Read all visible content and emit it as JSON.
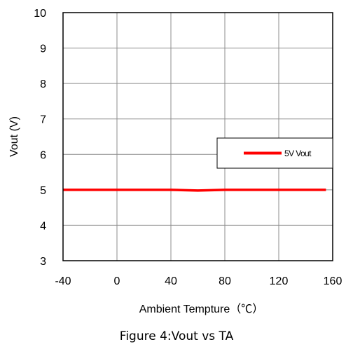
{
  "chart_data": {
    "type": "line",
    "xlabel": "Ambient Tempture（℃）",
    "ylabel": "Vout (V)",
    "caption": "Figure 4:Vout vs TA",
    "xlim": [
      -40,
      160
    ],
    "ylim": [
      3,
      10
    ],
    "xticks": [
      -40,
      0,
      40,
      80,
      120,
      160
    ],
    "yticks": [
      3,
      4,
      5,
      6,
      7,
      8,
      9,
      10
    ],
    "grid": true,
    "legend_position": "right",
    "series": [
      {
        "name": "5V Vout",
        "color": "#ff0000",
        "x": [
          -40,
          -20,
          0,
          20,
          40,
          50,
          60,
          70,
          80,
          100,
          120,
          140,
          155
        ],
        "y": [
          5.0,
          5.0,
          5.0,
          5.0,
          5.0,
          4.99,
          4.98,
          4.99,
          5.0,
          5.0,
          5.0,
          5.0,
          5.0
        ]
      }
    ]
  }
}
